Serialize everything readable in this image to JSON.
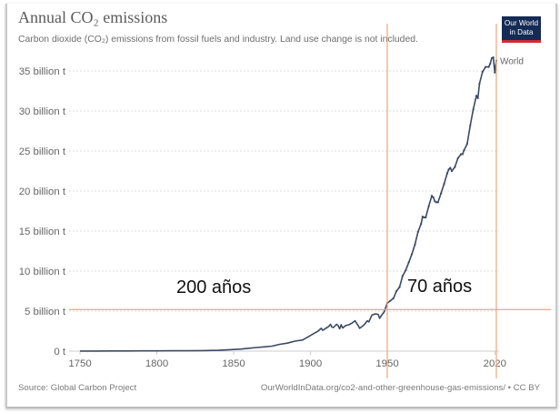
{
  "header": {
    "title": "Annual CO₂ emissions",
    "subtitle": "Carbon dioxide (CO₂) emissions from fossil fuels and industry. Land use change is not included."
  },
  "logo": {
    "line1": "Our World",
    "line2": "in Data",
    "bg_color": "#142b55",
    "accent_color": "#cf2a32"
  },
  "footer": {
    "source": "Source: Global Carbon Project",
    "url": "OurWorldInData.org/co2-and-other-greenhouse-gas-emissions/ • CC BY"
  },
  "chart_data": {
    "type": "line",
    "title": "Annual CO₂ emissions",
    "subtitle": "Carbon dioxide (CO₂) emissions from fossil fuels and industry. Land use change is not included.",
    "xlabel": "",
    "ylabel": "",
    "xlim": [
      1750,
      2021
    ],
    "ylim": [
      0,
      37
    ],
    "y_unit": "billion t",
    "grid": true,
    "x_ticks": [
      1750,
      1800,
      1850,
      1900,
      1950,
      2020
    ],
    "x_tick_labels": [
      "1750",
      "1800",
      "1850",
      "1900",
      "1950",
      "2020"
    ],
    "y_ticks": [
      0,
      5,
      10,
      15,
      20,
      25,
      30,
      35
    ],
    "y_tick_labels": [
      "0 t",
      "5 billion t",
      "10 billion t",
      "15 billion t",
      "20 billion t",
      "25 billion t",
      "30 billion t",
      "35 billion t"
    ],
    "series": [
      {
        "name": "World",
        "color": "#3b4a63",
        "x": [
          1750,
          1760,
          1770,
          1780,
          1790,
          1800,
          1810,
          1820,
          1830,
          1840,
          1850,
          1855,
          1860,
          1865,
          1870,
          1875,
          1880,
          1885,
          1890,
          1895,
          1900,
          1903,
          1905,
          1907,
          1908,
          1910,
          1912,
          1913,
          1914,
          1915,
          1917,
          1918,
          1919,
          1920,
          1921,
          1923,
          1925,
          1927,
          1929,
          1930,
          1931,
          1932,
          1933,
          1935,
          1937,
          1938,
          1940,
          1942,
          1944,
          1945,
          1946,
          1948,
          1950,
          1952,
          1954,
          1956,
          1958,
          1960,
          1962,
          1964,
          1966,
          1968,
          1970,
          1972,
          1973,
          1974,
          1975,
          1977,
          1979,
          1980,
          1981,
          1982,
          1983,
          1985,
          1987,
          1989,
          1990,
          1991,
          1992,
          1994,
          1996,
          1998,
          1999,
          2000,
          2002,
          2004,
          2006,
          2008,
          2009,
          2010,
          2012,
          2014,
          2016,
          2017,
          2018,
          2019,
          2020,
          2021
        ],
        "values": [
          0.01,
          0.01,
          0.02,
          0.02,
          0.03,
          0.03,
          0.04,
          0.05,
          0.07,
          0.1,
          0.2,
          0.26,
          0.36,
          0.45,
          0.53,
          0.62,
          0.85,
          1.0,
          1.25,
          1.4,
          1.95,
          2.3,
          2.5,
          2.85,
          2.6,
          2.85,
          3.1,
          3.35,
          3.0,
          2.95,
          3.35,
          3.2,
          2.8,
          3.3,
          2.9,
          3.2,
          3.3,
          3.5,
          3.8,
          3.5,
          3.2,
          2.85,
          3.0,
          3.3,
          3.8,
          3.65,
          4.5,
          4.65,
          4.6,
          4.1,
          4.4,
          4.9,
          6.0,
          6.3,
          6.6,
          7.5,
          8.0,
          9.4,
          10.1,
          11.1,
          12.1,
          13.3,
          14.9,
          15.9,
          16.8,
          16.7,
          16.7,
          18.1,
          19.4,
          19.2,
          18.7,
          18.6,
          18.6,
          19.7,
          20.9,
          22.2,
          22.7,
          22.9,
          22.5,
          23.0,
          24.1,
          24.6,
          24.6,
          25.1,
          25.9,
          28.2,
          30.2,
          31.9,
          31.6,
          33.4,
          34.9,
          35.5,
          35.5,
          35.9,
          36.6,
          36.7,
          34.8,
          36.3
        ]
      }
    ],
    "annotations": [
      {
        "text": "200 años",
        "type": "label"
      },
      {
        "text": "70 años",
        "type": "label"
      },
      {
        "type": "vline",
        "x": 1950,
        "color": "#f2a57a"
      },
      {
        "type": "vline",
        "x": 2021,
        "color": "#f2a57a"
      },
      {
        "type": "hline",
        "y": 5.2,
        "color": "#f2a57a"
      }
    ]
  }
}
